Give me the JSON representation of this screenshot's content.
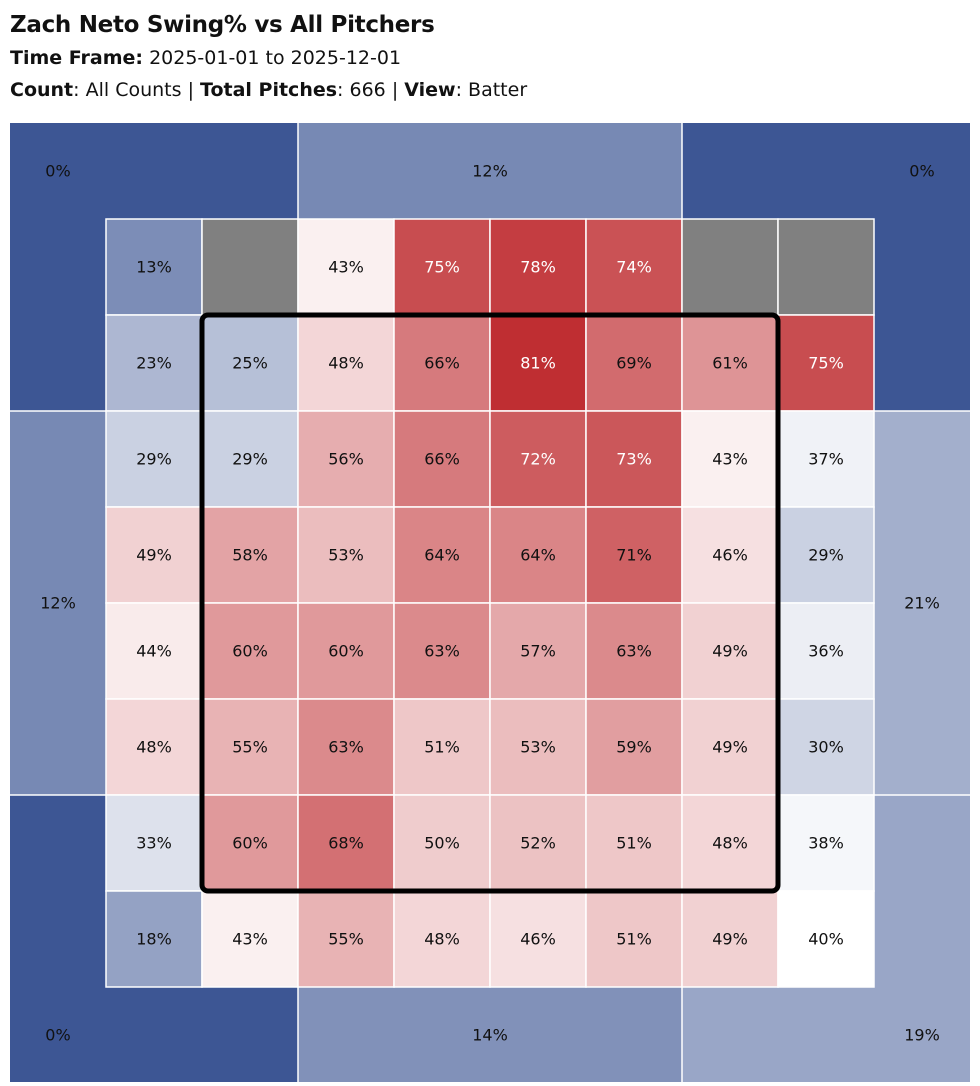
{
  "header": {
    "title": "Zach Neto Swing% vs All Pitchers",
    "time_frame_label": "Time Frame:",
    "time_frame_value": "2025-01-01 to 2025-12-01",
    "count_label": "Count",
    "count_value": "All Counts",
    "total_pitches_label": "Total Pitches",
    "total_pitches_value": "666",
    "view_label": "View",
    "view_value": "Batter",
    "separator": "|"
  },
  "chart_data": {
    "type": "heatmap",
    "metric": "Swing%",
    "grid_columns": 8,
    "grid_rows": 8,
    "cells": [
      [
        13,
        null,
        43,
        75,
        78,
        74,
        null,
        null
      ],
      [
        23,
        25,
        48,
        66,
        81,
        69,
        61,
        75
      ],
      [
        29,
        29,
        56,
        66,
        72,
        73,
        43,
        37
      ],
      [
        49,
        58,
        53,
        64,
        64,
        71,
        46,
        29
      ],
      [
        44,
        60,
        60,
        63,
        57,
        63,
        49,
        36
      ],
      [
        48,
        55,
        63,
        51,
        53,
        59,
        49,
        30
      ],
      [
        33,
        60,
        68,
        50,
        52,
        51,
        48,
        38
      ],
      [
        18,
        43,
        55,
        48,
        46,
        51,
        49,
        40
      ]
    ],
    "outer_zones": {
      "top_left": 0,
      "top_center": 12,
      "top_right": 0,
      "middle_left": 12,
      "middle_right": 21,
      "bottom_left": 0,
      "bottom_center": 14,
      "bottom_right": 19
    },
    "strike_zone": {
      "col_start": 1,
      "col_end": 7,
      "row_start": 1,
      "row_end": 7
    },
    "color_scale": {
      "low": "#3d5694",
      "mid": "#ffffff",
      "high": "#bf2e32",
      "missing": "#808080"
    },
    "unit": "%"
  }
}
